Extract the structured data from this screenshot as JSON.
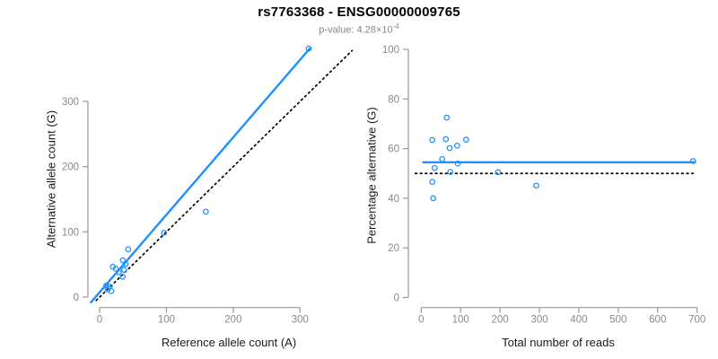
{
  "header": {
    "title": "rs7763368 - ENSG00000009765",
    "subtitle_prefix": "p-value: 4.28",
    "subtitle_times": "×10",
    "subtitle_exponent": "-4"
  },
  "colors": {
    "accent": "#1E90FF",
    "dotted_line": "#000000",
    "axis": "#999999",
    "tick_label": "#8a8a8a",
    "axis_title": "#1a1a1a"
  },
  "chart_data": [
    {
      "type": "scatter",
      "panel": "left",
      "xlabel": "Reference allele count (A)",
      "ylabel": "Alternative allele count (G)",
      "x_ticks": [
        0,
        100,
        200,
        300
      ],
      "y_ticks": [
        0,
        100,
        200,
        300
      ],
      "xlim": [
        -17,
        389
      ],
      "ylim": [
        -16,
        382
      ],
      "grid": false,
      "legend": null,
      "points": [
        [
          9.8,
          17.5
        ],
        [
          12.1,
          12.0
        ],
        [
          15.2,
          16.1
        ],
        [
          17.5,
          9.2
        ],
        [
          19.8,
          46.4
        ],
        [
          24.2,
          43.6
        ],
        [
          28.7,
          38.1
        ],
        [
          34.6,
          31.2
        ],
        [
          34.6,
          56.4
        ],
        [
          36.7,
          41.7
        ],
        [
          39.0,
          50.9
        ],
        [
          42.6,
          73.3
        ],
        [
          96.5,
          98.5
        ],
        [
          159,
          131
        ],
        [
          313,
          381
        ]
      ],
      "lines": [
        {
          "name": "identity-line",
          "style": "dotted",
          "color": "#000000",
          "x1": -5,
          "y1": -5,
          "x2": 378,
          "y2": 378
        },
        {
          "name": "regression-line",
          "style": "solid",
          "color": "#1E90FF",
          "x1": -13,
          "y1": -8,
          "x2": 314.5,
          "y2": 381
        }
      ]
    },
    {
      "type": "scatter",
      "panel": "right",
      "xlabel": "Total number of reads",
      "ylabel": "Percentage alternative (G)",
      "x_ticks": [
        0,
        100,
        200,
        300,
        400,
        500,
        600,
        700
      ],
      "y_ticks": [
        0,
        20,
        40,
        60,
        80,
        100
      ],
      "xlim": [
        -30,
        730
      ],
      "ylim": [
        -4,
        104
      ],
      "grid": false,
      "legend": null,
      "points": [
        [
          28.2,
          63.5
        ],
        [
          62.4,
          63.8
        ],
        [
          72.2,
          60.2
        ],
        [
          91.1,
          61.2
        ],
        [
          113.9,
          63.6
        ],
        [
          64.7,
          72.5
        ],
        [
          53.3,
          55.8
        ],
        [
          92.7,
          54.0
        ],
        [
          34.2,
          52.2
        ],
        [
          73.8,
          50.6
        ],
        [
          28.2,
          46.6
        ],
        [
          30.5,
          40.0
        ],
        [
          195,
          50.5
        ],
        [
          292,
          45.1
        ],
        [
          690,
          55.0
        ]
      ],
      "lines": [
        {
          "name": "null-line",
          "style": "dotted",
          "color": "#000000",
          "x1": -15,
          "y1": 50,
          "x2": 690,
          "y2": 50
        },
        {
          "name": "mean-line",
          "style": "solid",
          "color": "#1E90FF",
          "x1": 5,
          "y1": 54.5,
          "x2": 695,
          "y2": 54.5
        }
      ]
    }
  ]
}
